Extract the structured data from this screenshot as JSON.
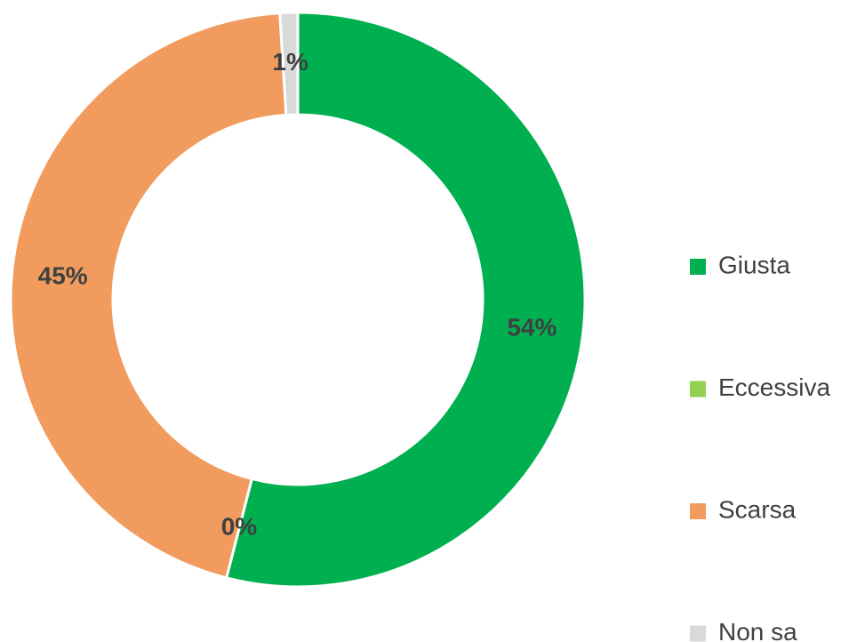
{
  "chart_data": {
    "type": "donut",
    "categories": [
      "Giusta",
      "Eccessiva",
      "Scarsa",
      "Non sa"
    ],
    "values": [
      54,
      0,
      45,
      1
    ],
    "value_labels": [
      "54%",
      "0%",
      "45%",
      "1%"
    ],
    "colors": [
      "#00b050",
      "#92d050",
      "#f19c5e",
      "#d9d9d9"
    ],
    "legend": "right"
  }
}
